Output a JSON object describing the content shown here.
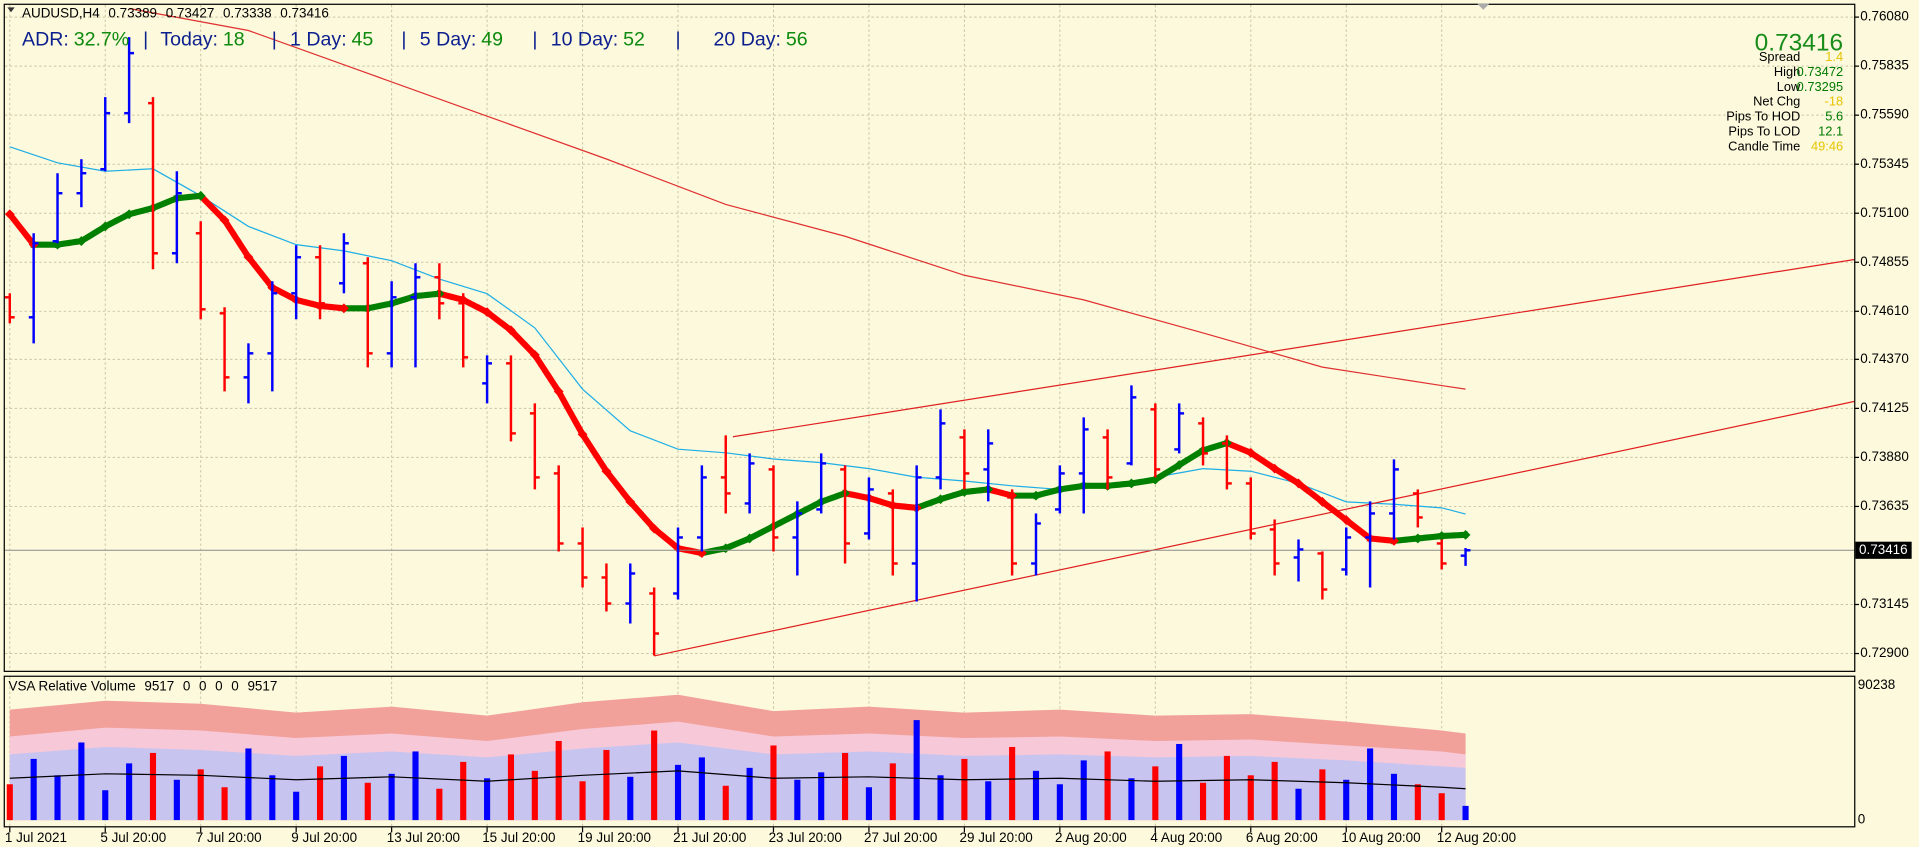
{
  "header": {
    "symbol": "AUDUSD,H4"
  },
  "adr": {
    "separator": "|",
    "items": [
      {
        "label": "ADR:",
        "value": "32.7%"
      },
      {
        "label": "Today:",
        "value": 18
      },
      {
        "label": "1 Day:",
        "value": 45
      },
      {
        "label": "5 Day:",
        "value": 49
      },
      {
        "label": "10 Day:",
        "value": 52
      },
      {
        "label": "20 Day:",
        "value": 56
      }
    ]
  },
  "info": {
    "rows": [
      {
        "label": "Spread",
        "value": 1.4,
        "color": "#e6c300"
      },
      {
        "label": "High",
        "value": 0.73472,
        "color": "#007a00"
      },
      {
        "label": "Low",
        "value": 0.73295,
        "color": "#007a00"
      },
      {
        "label": "Net Chg",
        "value": -18,
        "color": "#e6c300"
      },
      {
        "label": "Pips To HOD",
        "value": 5.6,
        "color": "#007a00"
      },
      {
        "label": "Pips To LOD",
        "value": 12.1,
        "color": "#007a00"
      },
      {
        "label": "Candle Time",
        "value": "49:46",
        "color": "#e6c300"
      }
    ]
  },
  "chart_data": [
    {
      "type": "ohlc",
      "categories": [
        "1 Jul 2021",
        null,
        null,
        null,
        "5 Jul 20:00",
        null,
        null,
        null,
        "7 Jul 20:00",
        null,
        null,
        null,
        "9 Jul 20:00",
        null,
        null,
        null,
        "13 Jul 20:00",
        null,
        null,
        null,
        "15 Jul 20:00",
        null,
        null,
        null,
        "19 Jul 20:00",
        null,
        null,
        null,
        "21 Jul 20:00",
        null,
        null,
        null,
        "23 Jul 20:00",
        null,
        null,
        null,
        "27 Jul 20:00",
        null,
        null,
        null,
        "29 Jul 20:00",
        null,
        null,
        null,
        "2 Aug 20:00",
        null,
        null,
        null,
        "4 Aug 20:00",
        null,
        null,
        null,
        "6 Aug 20:00",
        null,
        null,
        null,
        "10 Aug 20:00",
        null,
        null,
        null,
        "12 Aug 20:00",
        null
      ],
      "open": [
        0.7468,
        0.7458,
        0.7496,
        0.752,
        0.7532,
        0.756,
        0.7565,
        0.749,
        0.75,
        0.746,
        0.7428,
        0.744,
        0.747,
        0.7488,
        0.7475,
        0.7485,
        0.744,
        0.7468,
        0.7478,
        0.7465,
        0.7425,
        0.7435,
        0.741,
        0.738,
        0.7345,
        0.7328,
        0.7315,
        0.732,
        0.732,
        0.7348,
        0.7378,
        0.7365,
        0.7382,
        0.7348,
        0.7362,
        0.7382,
        0.735,
        0.737,
        0.7335,
        0.7378,
        0.7398,
        0.7382,
        0.7368,
        0.7335,
        0.7362,
        0.738,
        0.7398,
        0.7385,
        0.7412,
        0.7392,
        0.7405,
        0.7395,
        0.7375,
        0.7352,
        0.7338,
        0.734,
        0.7332,
        0.7348,
        0.736,
        0.737,
        0.7345,
        0.73389
      ],
      "high": [
        0.747,
        0.75,
        0.753,
        0.7537,
        0.7568,
        0.7598,
        0.7568,
        0.7531,
        0.7506,
        0.7463,
        0.7445,
        0.7476,
        0.7494,
        0.7494,
        0.75,
        0.7488,
        0.7476,
        0.7485,
        0.7485,
        0.747,
        0.7439,
        0.7439,
        0.7415,
        0.7384,
        0.7353,
        0.7335,
        0.7335,
        0.7323,
        0.7353,
        0.7384,
        0.7399,
        0.739,
        0.7384,
        0.7366,
        0.739,
        0.7384,
        0.7378,
        0.7372,
        0.7384,
        0.7412,
        0.7402,
        0.7402,
        0.7372,
        0.736,
        0.7384,
        0.7408,
        0.7402,
        0.7424,
        0.7415,
        0.7415,
        0.7408,
        0.7399,
        0.7378,
        0.7357,
        0.7347,
        0.7341,
        0.7353,
        0.7366,
        0.7387,
        0.7372,
        0.7347,
        0.73427
      ],
      "low": [
        0.7455,
        0.7445,
        0.7495,
        0.7513,
        0.7531,
        0.7555,
        0.7482,
        0.7485,
        0.7457,
        0.7421,
        0.7415,
        0.7421,
        0.7457,
        0.7457,
        0.747,
        0.7433,
        0.7433,
        0.7433,
        0.7457,
        0.7433,
        0.7415,
        0.7396,
        0.7372,
        0.7341,
        0.7323,
        0.7311,
        0.7305,
        0.7289,
        0.7317,
        0.7341,
        0.736,
        0.736,
        0.7341,
        0.7329,
        0.736,
        0.7335,
        0.7347,
        0.7329,
        0.7316,
        0.7372,
        0.7372,
        0.7366,
        0.7329,
        0.7329,
        0.736,
        0.736,
        0.7372,
        0.7384,
        0.7378,
        0.739,
        0.7384,
        0.7372,
        0.7347,
        0.7329,
        0.7326,
        0.7317,
        0.7329,
        0.7323,
        0.7347,
        0.7353,
        0.7332,
        0.73338
      ],
      "close": [
        0.7458,
        0.7495,
        0.752,
        0.753,
        0.756,
        0.759,
        0.749,
        0.752,
        0.7462,
        0.7428,
        0.744,
        0.747,
        0.7488,
        0.7465,
        0.7495,
        0.744,
        0.7468,
        0.7478,
        0.7465,
        0.7438,
        0.7435,
        0.74,
        0.7378,
        0.7345,
        0.7328,
        0.7315,
        0.733,
        0.73,
        0.7348,
        0.7378,
        0.737,
        0.7385,
        0.7348,
        0.736,
        0.7385,
        0.7345,
        0.7372,
        0.7335,
        0.7378,
        0.7405,
        0.738,
        0.7395,
        0.7335,
        0.7355,
        0.738,
        0.7402,
        0.7378,
        0.7418,
        0.7382,
        0.741,
        0.739,
        0.7375,
        0.735,
        0.7335,
        0.7342,
        0.7322,
        0.7348,
        0.736,
        0.7382,
        0.7358,
        0.7335,
        0.73416
      ],
      "up_color": "#0000ff",
      "down_color": "#ff0000",
      "ma_fast": {
        "up_color": "#008000",
        "down_color": "#ff0000",
        "values": [
          0.75095,
          0.74943,
          0.74943,
          0.74961,
          0.75034,
          0.75095,
          0.75126,
          0.75175,
          0.75187,
          0.75065,
          0.74881,
          0.74729,
          0.74667,
          0.74637,
          0.74625,
          0.74625,
          0.74649,
          0.74686,
          0.74698,
          0.74667,
          0.74606,
          0.74515,
          0.74392,
          0.74209,
          0.73995,
          0.73811,
          0.73658,
          0.73524,
          0.73426,
          0.73402,
          0.73426,
          0.73475,
          0.73536,
          0.73597,
          0.73658,
          0.73701,
          0.73677,
          0.7364,
          0.73628,
          0.73671,
          0.73707,
          0.7372,
          0.73689,
          0.73689,
          0.7372,
          0.73738,
          0.73738,
          0.7375,
          0.73769,
          0.73842,
          0.73915,
          0.73952,
          0.73903,
          0.73824,
          0.7375,
          0.73658,
          0.73567,
          0.73475,
          0.73463,
          0.73475,
          0.73487,
          0.73493
        ]
      },
      "ma_mid": {
        "color": "#1eaee6",
        "x": [
          0,
          2,
          4,
          6,
          8,
          10,
          12,
          14,
          16,
          18,
          20,
          22,
          24,
          26,
          28,
          30,
          32,
          34,
          36,
          38,
          40,
          42,
          44,
          46,
          48,
          50,
          52,
          54,
          56,
          58,
          60,
          61
        ],
        "values": [
          0.75432,
          0.75352,
          0.7531,
          0.75322,
          0.75187,
          0.75034,
          0.74943,
          0.74912,
          0.74863,
          0.74771,
          0.74698,
          0.74527,
          0.74221,
          0.74013,
          0.73921,
          0.73903,
          0.73872,
          0.73854,
          0.73824,
          0.73781,
          0.73762,
          0.73738,
          0.7372,
          0.73732,
          0.73781,
          0.73824,
          0.73811,
          0.7375,
          0.73658,
          0.73646,
          0.73628,
          0.73597
        ]
      },
      "ma_slow": {
        "color": "#e03030",
        "x": [
          5,
          10,
          15,
          20,
          25,
          30,
          35,
          40,
          45,
          50,
          55,
          60,
          61
        ],
        "values": [
          0.76123,
          0.76013,
          0.75799,
          0.75585,
          0.75371,
          0.75144,
          0.74985,
          0.7479,
          0.74667,
          0.74502,
          0.74331,
          0.74239,
          0.74221
        ]
      },
      "trendlines": [
        {
          "color": "#e02020",
          "x": [
            27,
            77.3
          ],
          "values": [
            0.72888,
            0.7416
          ]
        },
        {
          "color": "#e02020",
          "x": [
            30.3,
            77.3
          ],
          "values": [
            0.73983,
            0.74869
          ]
        }
      ],
      "ylim": [
        0.72814,
        0.76141
      ],
      "yticks": [
        {
          "value": 0.7608,
          "label": "0.76080"
        },
        0.75835,
        {
          "value": 0.7559,
          "label": "0.75590"
        },
        0.75345,
        {
          "value": 0.751,
          "label": "0.75100"
        },
        0.74855,
        {
          "value": 0.7461,
          "label": "0.74610"
        },
        {
          "value": 0.7437,
          "label": "0.74370"
        },
        0.74125,
        {
          "value": 0.7388,
          "label": "0.73880"
        },
        0.73635,
        0.73145,
        {
          "value": 0.729,
          "label": "0.72900"
        }
      ],
      "grid": true
    },
    {
      "type": "volume",
      "title": "VSA Relative Volume",
      "values": [
        24000,
        41000,
        30000,
        52000,
        20000,
        38000,
        45000,
        27000,
        34000,
        22000,
        48000,
        30000,
        19000,
        36000,
        43000,
        25000,
        31000,
        46000,
        21000,
        39000,
        28000,
        44000,
        33000,
        53000,
        26000,
        47000,
        29000,
        60000,
        37000,
        42000,
        23000,
        35000,
        50000,
        27000,
        32000,
        45000,
        22000,
        38000,
        67000,
        30000,
        41000,
        26000,
        49000,
        33000,
        24000,
        40000,
        46000,
        28000,
        36000,
        51000,
        25000,
        43000,
        30000,
        39000,
        21000,
        34000,
        27000,
        48000,
        31000,
        24000,
        18000,
        9517
      ],
      "buffers": [
        0,
        0,
        0,
        0,
        9517
      ],
      "up_color": "#0000ff",
      "down_color": "#ff0000",
      "bands": {
        "x": [
          0,
          4,
          8,
          12,
          16,
          20,
          24,
          28,
          32,
          36,
          40,
          44,
          48,
          52,
          56,
          60,
          61
        ],
        "series": [
          {
            "color": "#f2a09a",
            "values": [
              74000,
              80000,
              78000,
              72000,
              76000,
              70000,
              79000,
              84000,
              73000,
              76000,
              72000,
              74000,
              70000,
              71000,
              66000,
              60000,
              58000
            ]
          },
          {
            "color": "#f6c8d8",
            "values": [
              56000,
              62000,
              60000,
              55000,
              58000,
              53000,
              61000,
              66000,
              56000,
              58000,
              55000,
              56000,
              53000,
              54000,
              50000,
              46000,
              44000
            ]
          },
          {
            "color": "#c8c4f0",
            "values": [
              44000,
              49000,
              47000,
              43000,
              46000,
              42000,
              48000,
              52000,
              44000,
              46000,
              43000,
              44000,
              42000,
              43000,
              40000,
              36000,
              35000
            ]
          }
        ]
      },
      "avg_line": {
        "color": "#000000",
        "x": [
          0,
          4,
          8,
          12,
          16,
          20,
          24,
          28,
          32,
          36,
          40,
          44,
          48,
          52,
          56,
          60,
          61
        ],
        "values": [
          28000,
          31000,
          30000,
          27000,
          29000,
          26000,
          30000,
          33000,
          28000,
          29000,
          27000,
          28000,
          26000,
          27000,
          25000,
          22000,
          21000
        ]
      },
      "ylim": [
        0,
        90238
      ],
      "yticks": [
        90238,
        0
      ]
    }
  ]
}
